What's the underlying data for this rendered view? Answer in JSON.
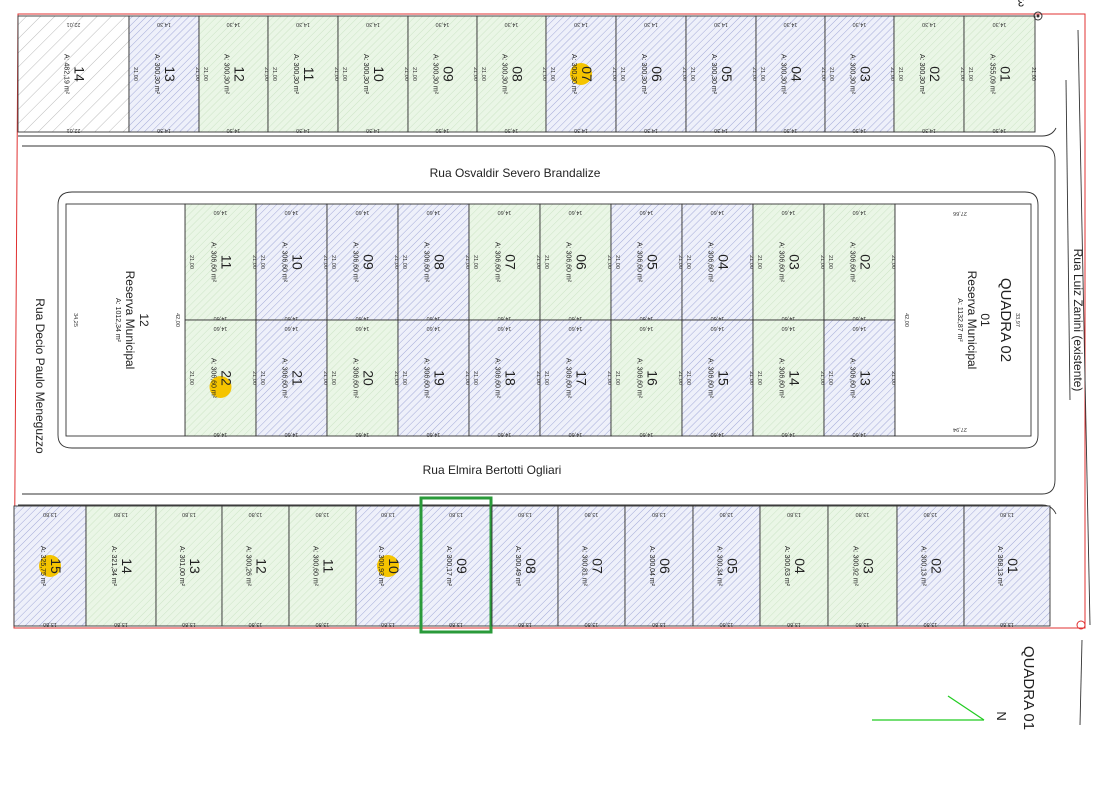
{
  "colors": {
    "boundary": "#e03030",
    "lot_outline": "#333333",
    "green_fill": "#e8f5e4",
    "blue_fill": "#eef0fa",
    "hatch": "#8890cc",
    "highlight_marker": "#f5c400",
    "selected_lot_border": "#2a9a3a",
    "north_arrow": "#22cc22"
  },
  "streets": {
    "top": "Rua Osvaldir Severo Brandalize",
    "middle": "Rua Elmira Bertotti Ogliari",
    "left": "Rua Decio Paulo Meneguzzo",
    "right": "Rua Luiz Zanini (existente)"
  },
  "blocks": {
    "quadra_02": "QUADRA 02",
    "quadra_01": "QUADRA 01",
    "top_corner_fragment": "3"
  },
  "north": "N",
  "top_row": [
    {
      "num": "14",
      "area": "A: 482,19 m²",
      "fill": "white"
    },
    {
      "num": "13",
      "area": "A: 300,30 m²",
      "fill": "blue"
    },
    {
      "num": "12",
      "area": "A: 300,30 m²",
      "fill": "green"
    },
    {
      "num": "11",
      "area": "A: 300,30 m²",
      "fill": "green"
    },
    {
      "num": "10",
      "area": "A: 300,30 m²",
      "fill": "green"
    },
    {
      "num": "09",
      "area": "A: 300,30 m²",
      "fill": "green"
    },
    {
      "num": "08",
      "area": "A: 300,30 m²",
      "fill": "green"
    },
    {
      "num": "07",
      "area": "A: 300,30 m²",
      "fill": "blue",
      "marked": true
    },
    {
      "num": "06",
      "area": "A: 300,30 m²",
      "fill": "blue"
    },
    {
      "num": "05",
      "area": "A: 300,30 m²",
      "fill": "blue"
    },
    {
      "num": "04",
      "area": "A: 300,30 m²",
      "fill": "blue"
    },
    {
      "num": "03",
      "area": "A: 300,30 m²",
      "fill": "blue"
    },
    {
      "num": "02",
      "area": "A: 300,30 m²",
      "fill": "green"
    },
    {
      "num": "01",
      "area": "A: 355,09 m²",
      "fill": "green"
    }
  ],
  "middle_upper": [
    {
      "num": "11",
      "area": "A: 306,60 m²",
      "fill": "green"
    },
    {
      "num": "10",
      "area": "A: 306,60 m²",
      "fill": "blue"
    },
    {
      "num": "09",
      "area": "A: 306,60 m²",
      "fill": "blue"
    },
    {
      "num": "08",
      "area": "A: 306,60 m²",
      "fill": "blue"
    },
    {
      "num": "07",
      "area": "A: 306,60 m²",
      "fill": "green"
    },
    {
      "num": "06",
      "area": "A: 306,60 m²",
      "fill": "green"
    },
    {
      "num": "05",
      "area": "A: 306,60 m²",
      "fill": "blue"
    },
    {
      "num": "04",
      "area": "A: 306,60 m²",
      "fill": "blue"
    },
    {
      "num": "03",
      "area": "A: 306,60 m²",
      "fill": "green"
    },
    {
      "num": "02",
      "area": "A: 306,60 m²",
      "fill": "green"
    }
  ],
  "middle_lower": [
    {
      "num": "22",
      "area": "A: 306,60 m²",
      "fill": "green",
      "marked": true
    },
    {
      "num": "21",
      "area": "A: 306,60 m²",
      "fill": "blue"
    },
    {
      "num": "20",
      "area": "A: 306,60 m²",
      "fill": "green"
    },
    {
      "num": "19",
      "area": "A: 306,60 m²",
      "fill": "blue"
    },
    {
      "num": "18",
      "area": "A: 306,60 m²",
      "fill": "blue"
    },
    {
      "num": "17",
      "area": "A: 306,60 m²",
      "fill": "blue"
    },
    {
      "num": "16",
      "area": "A: 306,60 m²",
      "fill": "green"
    },
    {
      "num": "15",
      "area": "A: 306,60 m²",
      "fill": "blue"
    },
    {
      "num": "14",
      "area": "A: 306,60 m²",
      "fill": "green"
    },
    {
      "num": "13",
      "area": "A: 306,60 m²",
      "fill": "blue"
    }
  ],
  "reserva_left": {
    "num": "12",
    "title": "Reserva Municipal",
    "area": "A: 1012,34 m²"
  },
  "reserva_right": {
    "num": "01",
    "title": "Reserva Municipal",
    "area": "A: 1132,87 m²"
  },
  "bottom_row": [
    {
      "num": "15",
      "area": "A: 325,75 m²",
      "fill": "blue",
      "marked": true
    },
    {
      "num": "14",
      "area": "A: 321,34 m²",
      "fill": "green"
    },
    {
      "num": "13",
      "area": "A: 301,00 m²",
      "fill": "green"
    },
    {
      "num": "12",
      "area": "A: 300,26 m²",
      "fill": "green"
    },
    {
      "num": "11",
      "area": "A: 300,60 m²",
      "fill": "green"
    },
    {
      "num": "10",
      "area": "A: 300,93 m²",
      "fill": "blue",
      "marked": true
    },
    {
      "num": "09",
      "area": "A: 300,17 m²",
      "fill": "blue",
      "selected": true
    },
    {
      "num": "08",
      "area": "A: 300,49 m²",
      "fill": "blue"
    },
    {
      "num": "07",
      "area": "A: 300,81 m²",
      "fill": "blue"
    },
    {
      "num": "06",
      "area": "A: 300,04 m²",
      "fill": "blue"
    },
    {
      "num": "05",
      "area": "A: 300,34 m²",
      "fill": "blue"
    },
    {
      "num": "04",
      "area": "A: 300,63 m²",
      "fill": "green"
    },
    {
      "num": "03",
      "area": "A: 300,92 m²",
      "fill": "green"
    },
    {
      "num": "02",
      "area": "A: 300,13 m²",
      "fill": "blue"
    },
    {
      "num": "01",
      "area": "A: 368,13 m²",
      "fill": "blue"
    }
  ],
  "dimensions": {
    "d1430": "14,30",
    "d2100": "21,00",
    "d1460": "14,60",
    "d2000": "20,00",
    "d1400": "14,00",
    "d1370": "13,70",
    "d1375": "13,75",
    "d1380": "13,80",
    "d1385": "13,85",
    "d1390": "13,90",
    "d1395": "13,95",
    "d1405": "14,05",
    "d1410": "14,10",
    "d1480": "14,80",
    "d1580": "15,80",
    "d2250": "22,50",
    "d2201": "22,01",
    "d2311": "23,11",
    "d1333": "13,33",
    "d1725": "17,25",
    "d3425": "34,25",
    "d4200": "42,00",
    "d3397": "33,97",
    "d2766": "27,66",
    "d2794": "27,94",
    "d1329": "13,29",
    "d1491": "14,91"
  }
}
